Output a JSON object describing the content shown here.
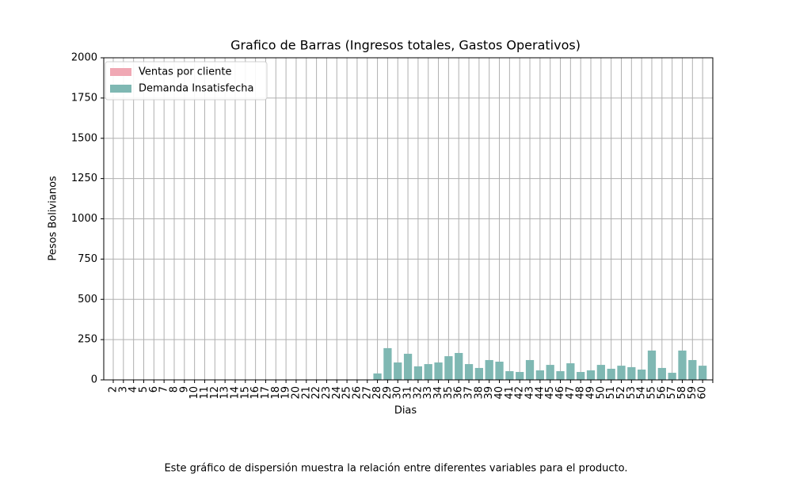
{
  "chart_data": {
    "type": "bar",
    "title": "Grafico de Barras (Ingresos totales, Gastos Operativos)",
    "xlabel": "Dias",
    "ylabel": "Pesos Bolivianos",
    "caption": "Este gráfico de dispersión muestra la relación entre diferentes variables para el producto.",
    "categories": [
      "2",
      "3",
      "4",
      "5",
      "6",
      "7",
      "8",
      "9",
      "10",
      "11",
      "12",
      "13",
      "14",
      "15",
      "16",
      "17",
      "18",
      "19",
      "20",
      "21",
      "22",
      "23",
      "24",
      "25",
      "26",
      "27",
      "28",
      "29",
      "30",
      "31",
      "32",
      "33",
      "34",
      "35",
      "36",
      "37",
      "38",
      "39",
      "40",
      "41",
      "42",
      "43",
      "44",
      "45",
      "46",
      "47",
      "48",
      "49",
      "50",
      "51",
      "52",
      "53",
      "54",
      "55",
      "56",
      "57",
      "58",
      "59",
      "60",
      null
    ],
    "series": [
      {
        "name": "Ventas por cliente",
        "color": "#f0a8b4",
        "values": [
          0,
          0,
          0,
          0,
          0,
          0,
          0,
          0,
          0,
          0,
          0,
          0,
          0,
          0,
          0,
          0,
          0,
          0,
          0,
          0,
          0,
          0,
          0,
          0,
          0,
          0,
          0,
          0,
          0,
          0,
          0,
          0,
          0,
          0,
          0,
          0,
          0,
          0,
          0,
          0,
          0,
          0,
          0,
          0,
          0,
          0,
          0,
          0,
          0,
          0,
          0,
          0,
          0,
          0,
          0,
          0,
          0,
          0,
          0,
          0
        ]
      },
      {
        "name": "Demanda Insatisfecha",
        "color": "#7fb8b3",
        "values": [
          0,
          0,
          0,
          0,
          0,
          0,
          0,
          0,
          0,
          0,
          0,
          0,
          0,
          0,
          0,
          0,
          0,
          0,
          0,
          0,
          0,
          0,
          0,
          0,
          0,
          0,
          40,
          197,
          108,
          162,
          84,
          98,
          108,
          147,
          167,
          98,
          74,
          123,
          113,
          54,
          49,
          123,
          59,
          93,
          54,
          103,
          49,
          59,
          93,
          69,
          88,
          79,
          64,
          182,
          74,
          44,
          182,
          123,
          88,
          0
        ]
      }
    ],
    "ylim": [
      0,
      2000
    ],
    "yticks": [
      0,
      250,
      500,
      750,
      1000,
      1250,
      1500,
      1750,
      2000
    ],
    "grid": true,
    "legend": "upper-left"
  }
}
